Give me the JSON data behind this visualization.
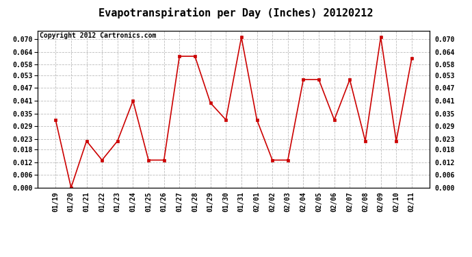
{
  "title": "Evapotranspiration per Day (Inches) 20120212",
  "copyright": "Copyright 2012 Cartronics.com",
  "x_labels": [
    "01/19",
    "01/20",
    "01/21",
    "01/22",
    "01/23",
    "01/24",
    "01/25",
    "01/26",
    "01/27",
    "01/28",
    "01/29",
    "01/30",
    "01/31",
    "02/01",
    "02/02",
    "02/03",
    "02/04",
    "02/05",
    "02/06",
    "02/07",
    "02/08",
    "02/09",
    "02/10",
    "02/11"
  ],
  "y_values": [
    0.032,
    0.0,
    0.022,
    0.013,
    0.022,
    0.041,
    0.013,
    0.013,
    0.062,
    0.062,
    0.04,
    0.032,
    0.071,
    0.032,
    0.013,
    0.013,
    0.051,
    0.051,
    0.032,
    0.051,
    0.022,
    0.071,
    0.022,
    0.061
  ],
  "line_color": "#cc0000",
  "marker_color": "#cc0000",
  "background_color": "#ffffff",
  "plot_bg_color": "#ffffff",
  "grid_color": "#bbbbbb",
  "title_fontsize": 11,
  "copyright_fontsize": 7,
  "tick_fontsize": 7,
  "ylim": [
    0.0,
    0.074
  ],
  "yticks": [
    0.0,
    0.006,
    0.012,
    0.018,
    0.023,
    0.029,
    0.035,
    0.041,
    0.047,
    0.053,
    0.058,
    0.064,
    0.07
  ]
}
